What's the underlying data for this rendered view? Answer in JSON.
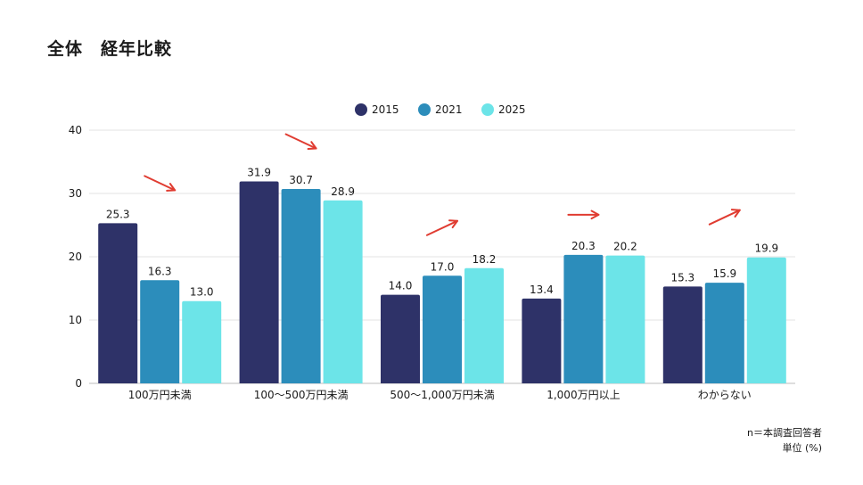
{
  "title": "全体　経年比較",
  "footnote": {
    "line1": "n＝本調査回答者",
    "line2": "単位 (%)"
  },
  "chart_data": {
    "type": "bar",
    "categories": [
      "100万円未満",
      "100～500万円未満",
      "500～1,000万円未満",
      "1,000万円以上",
      "わからない"
    ],
    "series": [
      {
        "name": "2015",
        "values": [
          25.3,
          31.9,
          14.0,
          13.4,
          15.3
        ]
      },
      {
        "name": "2021",
        "values": [
          16.3,
          30.7,
          17.0,
          20.3,
          15.9
        ]
      },
      {
        "name": "2025",
        "values": [
          13.0,
          28.9,
          18.2,
          20.2,
          19.9
        ]
      }
    ],
    "ylim": [
      0,
      40
    ],
    "yticks": [
      0,
      10,
      20,
      30,
      40
    ],
    "grid": true,
    "legend": "top-center",
    "colors": [
      "#2e3268",
      "#2c8dbb",
      "#6ce4e8"
    ],
    "trend_arrows": [
      "down",
      "down",
      "up",
      "flat",
      "up"
    ],
    "arrow_color": "#e03c31"
  }
}
